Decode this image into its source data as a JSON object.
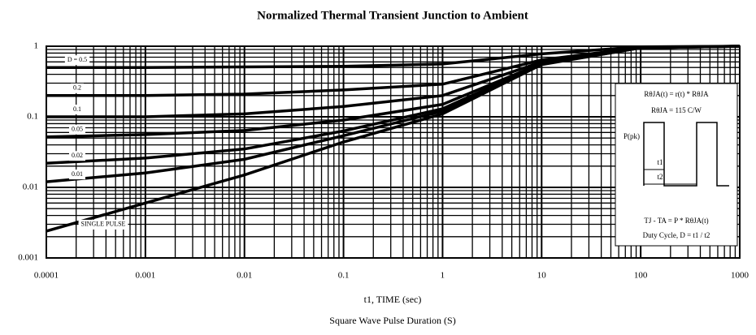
{
  "chart_data": {
    "type": "line",
    "title": "Normalized Thermal Transient Junction to Ambient",
    "xlabel": "t1, TIME (sec)",
    "xlabel2": "Square Wave Pulse Duration (S)",
    "x": [
      0.0001,
      0.001,
      0.01,
      0.1,
      1,
      10,
      100,
      1000
    ],
    "series": [
      {
        "name": "D = 0.5",
        "color": "#000000",
        "values": [
          0.5,
          0.5,
          0.51,
          0.52,
          0.56,
          0.78,
          0.98,
          1
        ]
      },
      {
        "name": "0.2",
        "color": "#000000",
        "values": [
          0.2,
          0.2,
          0.21,
          0.24,
          0.29,
          0.64,
          0.96,
          1
        ]
      },
      {
        "name": "0.1",
        "color": "#000000",
        "values": [
          0.1,
          0.1,
          0.11,
          0.14,
          0.2,
          0.6,
          0.96,
          1
        ]
      },
      {
        "name": "0.05",
        "color": "#000000",
        "values": [
          0.052,
          0.056,
          0.064,
          0.09,
          0.15,
          0.57,
          0.95,
          1
        ]
      },
      {
        "name": "0.02",
        "color": "#000000",
        "values": [
          0.022,
          0.026,
          0.035,
          0.063,
          0.13,
          0.56,
          0.95,
          1
        ]
      },
      {
        "name": "0.01",
        "color": "#000000",
        "values": [
          0.012,
          0.016,
          0.025,
          0.054,
          0.12,
          0.56,
          0.95,
          1
        ]
      },
      {
        "name": "SINGLE PULSE",
        "color": "#000000",
        "values": [
          0.0024,
          0.006,
          0.015,
          0.044,
          0.11,
          0.55,
          0.95,
          1
        ]
      }
    ],
    "xlim": [
      0.0001,
      1000
    ],
    "ylim": [
      0.001,
      1
    ],
    "xticks": [
      0.0001,
      0.001,
      0.01,
      0.1,
      1,
      10,
      100,
      1000
    ],
    "yticks": [
      0.001,
      0.01,
      0.1,
      1
    ],
    "log_x": true,
    "log_y": true,
    "grid": true,
    "annotations": [
      "RθJA(t) = r(t) * RθJA",
      "RθJA = 115 C/W",
      "P(pk)",
      "t1",
      "t2",
      "TJ - TA = P * RθJA(t)",
      "Duty Cycle, D = t1 / t2"
    ]
  }
}
